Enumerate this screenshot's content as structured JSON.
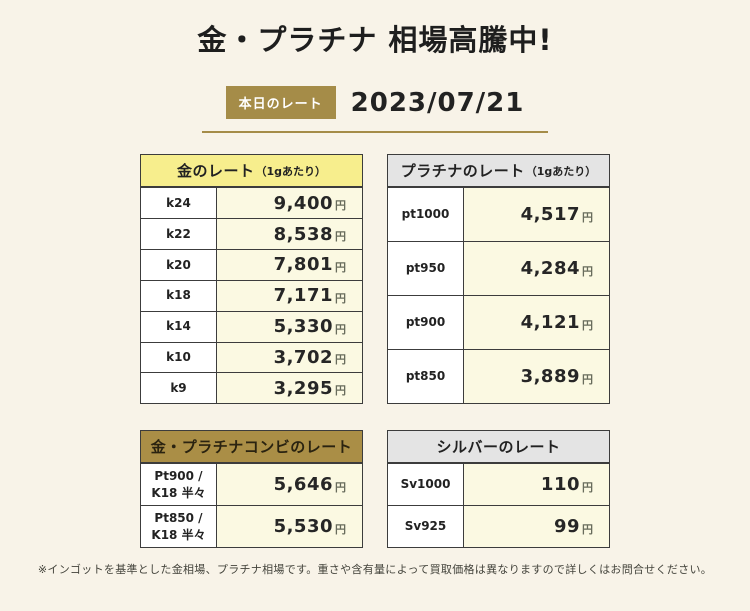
{
  "header": {
    "title": "金・プラチナ 相場高騰中!",
    "badge_label": "本日のレート",
    "date": "2023/07/21"
  },
  "colors": {
    "page_background": "#f8f3e8",
    "accent_gold": "#a58c48",
    "gold_header_bg": "#f7ee8d",
    "gray_header_bg": "#e4e4e4",
    "combo_header_bg": "#aa8e46",
    "value_cell_bg": "#fbf9e2",
    "border": "#3c3c3c"
  },
  "tables": [
    {
      "id": "gold-rate",
      "header": {
        "title": "金のレート",
        "note": "（1gあたり）",
        "style": "yellow"
      },
      "rows": [
        {
          "label_lines": [
            "k24"
          ],
          "value": "9,400",
          "unit": "円"
        },
        {
          "label_lines": [
            "k22"
          ],
          "value": "8,538",
          "unit": "円"
        },
        {
          "label_lines": [
            "k20"
          ],
          "value": "7,801",
          "unit": "円"
        },
        {
          "label_lines": [
            "k18"
          ],
          "value": "7,171",
          "unit": "円"
        },
        {
          "label_lines": [
            "k14"
          ],
          "value": "5,330",
          "unit": "円"
        },
        {
          "label_lines": [
            "k10"
          ],
          "value": "3,702",
          "unit": "円"
        },
        {
          "label_lines": [
            "k9"
          ],
          "value": "3,295",
          "unit": "円"
        }
      ]
    },
    {
      "id": "platinum-rate",
      "header": {
        "title": "プラチナのレート",
        "note": "（1gあたり）",
        "style": "gray"
      },
      "rows": [
        {
          "label_lines": [
            "pt1000"
          ],
          "value": "4,517",
          "unit": "円"
        },
        {
          "label_lines": [
            "pt950"
          ],
          "value": "4,284",
          "unit": "円"
        },
        {
          "label_lines": [
            "pt900"
          ],
          "value": "4,121",
          "unit": "円"
        },
        {
          "label_lines": [
            "pt850"
          ],
          "value": "3,889",
          "unit": "円"
        }
      ]
    },
    {
      "id": "gold-platinum-combo-rate",
      "header": {
        "title": "金・プラチナコンビのレート",
        "note": "",
        "style": "gold"
      },
      "rows": [
        {
          "label_lines": [
            "Pt900 /",
            "K18 半々"
          ],
          "value": "5,646",
          "unit": "円"
        },
        {
          "label_lines": [
            "Pt850 /",
            "K18 半々"
          ],
          "value": "5,530",
          "unit": "円"
        }
      ]
    },
    {
      "id": "silver-rate",
      "header": {
        "title": "シルバーのレート",
        "note": "",
        "style": "gray"
      },
      "rows": [
        {
          "label_lines": [
            "Sv1000"
          ],
          "value": "110",
          "unit": "円"
        },
        {
          "label_lines": [
            "Sv925"
          ],
          "value": "99",
          "unit": "円"
        }
      ]
    }
  ],
  "footer": {
    "note": "※インゴットを基準とした金相場、プラチナ相場です。重さや含有量によって買取価格は異なりますので詳しくはお問合せください。"
  }
}
